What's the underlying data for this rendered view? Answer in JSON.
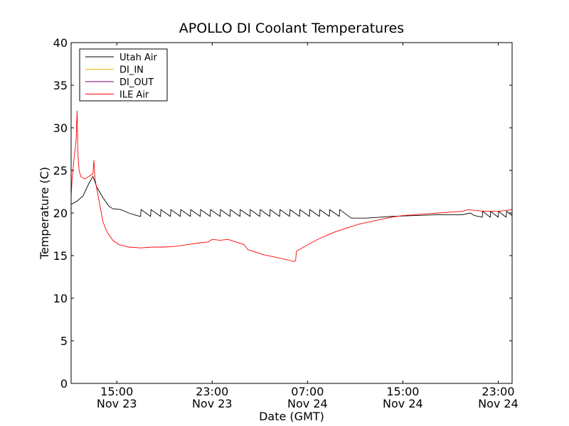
{
  "chart_data": {
    "type": "line",
    "title": "APOLLO DI Coolant Temperatures",
    "xlabel": "Date (GMT)",
    "ylabel": "Temperature (C)",
    "ylim": [
      0,
      40
    ],
    "xlim": [
      "2012-11-23T11:10",
      "2012-11-25T00:10"
    ],
    "yticks": [
      0,
      5,
      10,
      15,
      20,
      25,
      30,
      35,
      40
    ],
    "xticks": [
      {
        "x": "2012-11-23T15:00",
        "time": "15:00",
        "date": "Nov 23"
      },
      {
        "x": "2012-11-23T23:00",
        "time": "23:00",
        "date": "Nov 23"
      },
      {
        "x": "2012-11-24T07:00",
        "time": "07:00",
        "date": "Nov 24"
      },
      {
        "x": "2012-11-24T15:00",
        "time": "15:00",
        "date": "Nov 24"
      },
      {
        "x": "2012-11-24T23:00",
        "time": "23:00",
        "date": "Nov 24"
      }
    ],
    "grid": false,
    "legend_position": "top-left",
    "series": [
      {
        "name": "Utah Air",
        "color": "#000000",
        "points": [
          [
            "2012-11-23T11:10",
            21.0
          ],
          [
            "2012-11-23T11:40",
            21.4
          ],
          [
            "2012-11-23T12:10",
            22.0
          ],
          [
            "2012-11-23T12:40",
            23.5
          ],
          [
            "2012-11-23T13:00",
            24.3
          ],
          [
            "2012-11-23T13:20",
            23.0
          ],
          [
            "2012-11-23T13:50",
            21.8
          ],
          [
            "2012-11-23T14:20",
            20.8
          ],
          [
            "2012-11-23T14:40",
            20.5
          ],
          [
            "2012-11-23T15:20",
            20.4
          ],
          [
            "2012-11-23T16:00",
            20.0
          ],
          [
            "2012-11-23T16:40",
            19.7
          ],
          [
            "2012-11-23T17:00",
            19.6
          ],
          [
            "2012-11-23T17:02",
            20.4
          ],
          [
            "2012-11-23T17:50",
            19.6
          ],
          [
            "2012-11-23T17:52",
            20.4
          ],
          [
            "2012-11-23T18:40",
            19.6
          ],
          [
            "2012-11-23T18:42",
            20.4
          ],
          [
            "2012-11-23T19:30",
            19.6
          ],
          [
            "2012-11-23T19:32",
            20.4
          ],
          [
            "2012-11-23T20:20",
            19.6
          ],
          [
            "2012-11-23T20:22",
            20.4
          ],
          [
            "2012-11-23T21:10",
            19.6
          ],
          [
            "2012-11-23T21:12",
            20.4
          ],
          [
            "2012-11-23T22:00",
            19.6
          ],
          [
            "2012-11-23T22:02",
            20.4
          ],
          [
            "2012-11-23T22:50",
            19.6
          ],
          [
            "2012-11-23T22:52",
            20.4
          ],
          [
            "2012-11-23T23:40",
            19.6
          ],
          [
            "2012-11-23T23:42",
            20.4
          ],
          [
            "2012-11-24T00:30",
            19.6
          ],
          [
            "2012-11-24T00:32",
            20.4
          ],
          [
            "2012-11-24T01:20",
            19.6
          ],
          [
            "2012-11-24T01:22",
            20.4
          ],
          [
            "2012-11-24T02:10",
            19.6
          ],
          [
            "2012-11-24T02:12",
            20.4
          ],
          [
            "2012-11-24T03:00",
            19.6
          ],
          [
            "2012-11-24T03:02",
            20.4
          ],
          [
            "2012-11-24T03:50",
            19.6
          ],
          [
            "2012-11-24T03:52",
            20.4
          ],
          [
            "2012-11-24T04:40",
            19.6
          ],
          [
            "2012-11-24T04:42",
            20.4
          ],
          [
            "2012-11-24T05:30",
            19.6
          ],
          [
            "2012-11-24T05:32",
            20.4
          ],
          [
            "2012-11-24T06:20",
            19.6
          ],
          [
            "2012-11-24T06:22",
            20.4
          ],
          [
            "2012-11-24T07:10",
            19.6
          ],
          [
            "2012-11-24T07:12",
            20.4
          ],
          [
            "2012-11-24T08:00",
            19.6
          ],
          [
            "2012-11-24T08:02",
            20.4
          ],
          [
            "2012-11-24T08:50",
            19.6
          ],
          [
            "2012-11-24T08:52",
            20.4
          ],
          [
            "2012-11-24T09:40",
            19.6
          ],
          [
            "2012-11-24T09:42",
            20.4
          ],
          [
            "2012-11-24T10:40",
            19.4
          ],
          [
            "2012-11-24T12:00",
            19.4
          ],
          [
            "2012-11-24T14:00",
            19.6
          ],
          [
            "2012-11-24T16:00",
            19.7
          ],
          [
            "2012-11-24T18:00",
            19.8
          ],
          [
            "2012-11-24T20:00",
            19.8
          ],
          [
            "2012-11-24T20:40",
            20.0
          ],
          [
            "2012-11-24T21:00",
            19.7
          ],
          [
            "2012-11-24T21:40",
            19.5
          ],
          [
            "2012-11-24T21:42",
            20.2
          ],
          [
            "2012-11-24T22:20",
            19.5
          ],
          [
            "2012-11-24T22:22",
            20.2
          ],
          [
            "2012-11-24T23:00",
            19.5
          ],
          [
            "2012-11-24T23:02",
            20.2
          ],
          [
            "2012-11-24T23:40",
            19.5
          ],
          [
            "2012-11-24T23:42",
            20.2
          ],
          [
            "2012-11-25T00:10",
            19.7
          ]
        ]
      },
      {
        "name": "DI_IN",
        "color": "#e8b800",
        "points": []
      },
      {
        "name": "DI_OUT",
        "color": "#800080",
        "points": []
      },
      {
        "name": "ILE Air",
        "color": "#ff0000",
        "points": [
          [
            "2012-11-23T11:10",
            22.0
          ],
          [
            "2012-11-23T11:15",
            24.0
          ],
          [
            "2012-11-23T11:25",
            26.5
          ],
          [
            "2012-11-23T11:35",
            28.5
          ],
          [
            "2012-11-23T11:40",
            32.0
          ],
          [
            "2012-11-23T11:44",
            27.0
          ],
          [
            "2012-11-23T11:50",
            25.0
          ],
          [
            "2012-11-23T12:00",
            24.2
          ],
          [
            "2012-11-23T12:20",
            24.0
          ],
          [
            "2012-11-23T12:40",
            24.3
          ],
          [
            "2012-11-23T13:00",
            24.6
          ],
          [
            "2012-11-23T13:05",
            26.2
          ],
          [
            "2012-11-23T13:10",
            24.0
          ],
          [
            "2012-11-23T13:30",
            21.5
          ],
          [
            "2012-11-23T13:50",
            19.0
          ],
          [
            "2012-11-23T14:10",
            17.8
          ],
          [
            "2012-11-23T14:40",
            16.8
          ],
          [
            "2012-11-23T15:10",
            16.3
          ],
          [
            "2012-11-23T16:00",
            16.0
          ],
          [
            "2012-11-23T17:00",
            15.9
          ],
          [
            "2012-11-23T18:00",
            16.0
          ],
          [
            "2012-11-23T19:00",
            16.0
          ],
          [
            "2012-11-23T20:00",
            16.1
          ],
          [
            "2012-11-23T20:30",
            16.2
          ],
          [
            "2012-11-23T21:00",
            16.3
          ],
          [
            "2012-11-23T22:00",
            16.5
          ],
          [
            "2012-11-23T22:40",
            16.6
          ],
          [
            "2012-11-23T23:00",
            16.9
          ],
          [
            "2012-11-23T23:40",
            16.8
          ],
          [
            "2012-11-24T00:20",
            16.9
          ],
          [
            "2012-11-24T01:00",
            16.6
          ],
          [
            "2012-11-24T01:40",
            16.3
          ],
          [
            "2012-11-24T02:00",
            15.7
          ],
          [
            "2012-11-24T02:40",
            15.4
          ],
          [
            "2012-11-24T03:20",
            15.1
          ],
          [
            "2012-11-24T04:00",
            14.9
          ],
          [
            "2012-11-24T04:40",
            14.7
          ],
          [
            "2012-11-24T05:20",
            14.5
          ],
          [
            "2012-11-24T05:50",
            14.3
          ],
          [
            "2012-11-24T06:00",
            14.4
          ],
          [
            "2012-11-24T06:04",
            15.5
          ],
          [
            "2012-11-24T06:40",
            16.0
          ],
          [
            "2012-11-24T07:20",
            16.5
          ],
          [
            "2012-11-24T08:00",
            17.0
          ],
          [
            "2012-11-24T08:40",
            17.4
          ],
          [
            "2012-11-24T09:20",
            17.8
          ],
          [
            "2012-11-24T10:00",
            18.1
          ],
          [
            "2012-11-24T10:40",
            18.4
          ],
          [
            "2012-11-24T11:20",
            18.7
          ],
          [
            "2012-11-24T12:00",
            18.9
          ],
          [
            "2012-11-24T13:00",
            19.2
          ],
          [
            "2012-11-24T14:00",
            19.5
          ],
          [
            "2012-11-24T15:00",
            19.7
          ],
          [
            "2012-11-24T16:00",
            19.8
          ],
          [
            "2012-11-24T17:00",
            19.9
          ],
          [
            "2012-11-24T18:00",
            20.0
          ],
          [
            "2012-11-24T19:00",
            20.1
          ],
          [
            "2012-11-24T20:00",
            20.2
          ],
          [
            "2012-11-24T20:30",
            20.4
          ],
          [
            "2012-11-24T21:00",
            20.3
          ],
          [
            "2012-11-24T22:00",
            20.2
          ],
          [
            "2012-11-24T23:00",
            20.2
          ],
          [
            "2012-11-24T23:40",
            20.3
          ],
          [
            "2012-11-25T00:10",
            20.4
          ]
        ]
      }
    ]
  }
}
